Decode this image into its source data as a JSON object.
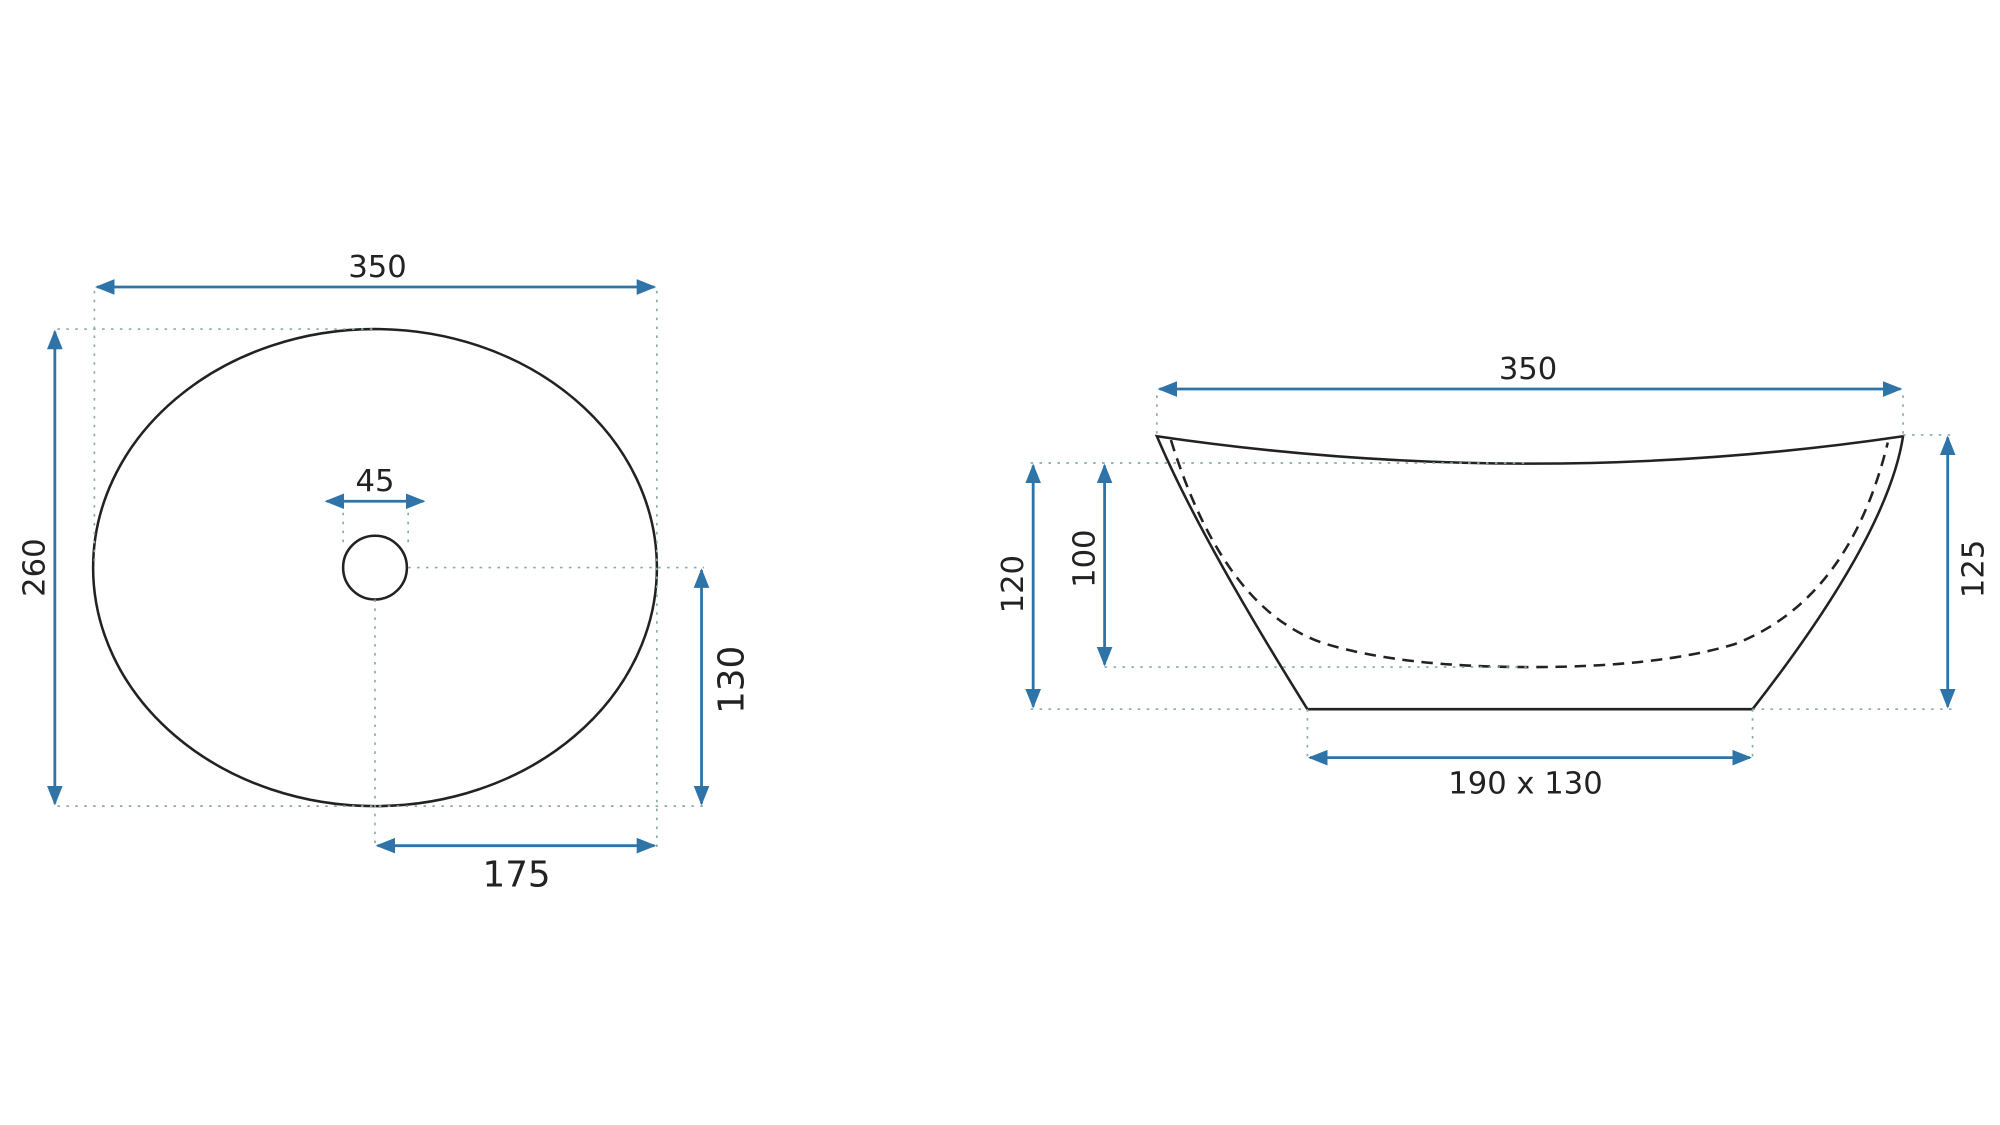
{
  "colors": {
    "dimension_line": "#2f74a8",
    "outline": "#222222"
  },
  "top_view": {
    "width_label": "350",
    "depth_label": "260",
    "drain_label": "45",
    "half_depth_label": "130",
    "half_width_label": "175"
  },
  "side_view": {
    "width_label": "350",
    "height_outer_label": "120",
    "height_inner_label": "100",
    "height_rim_label": "125",
    "base_label": "190 x 130"
  }
}
